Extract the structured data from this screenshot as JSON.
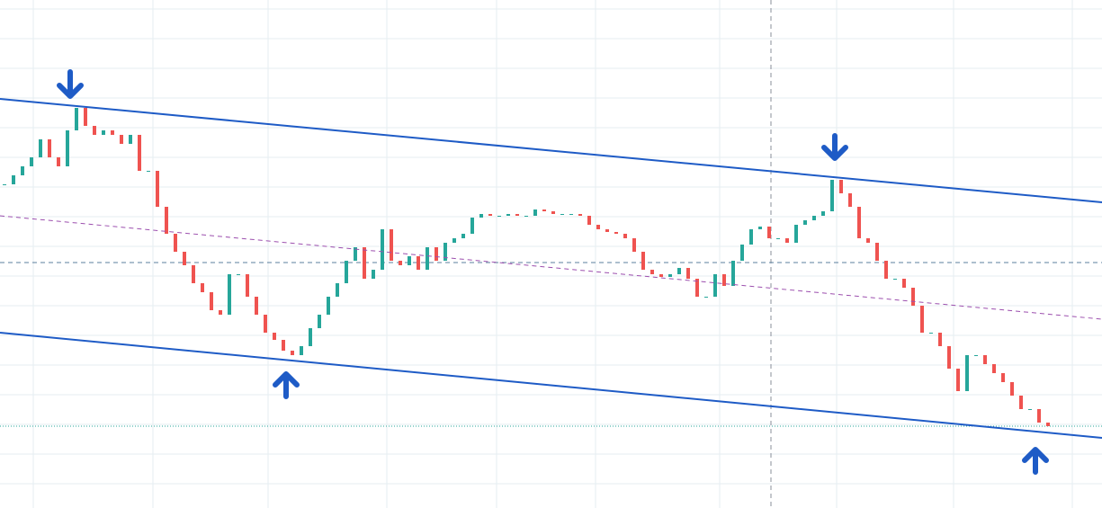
{
  "chart_data": {
    "type": "candlestick",
    "up_color": "#26a69a",
    "down_color": "#ef5350",
    "ylim": [
      0,
      565
    ],
    "values": [
      360,
      370,
      380,
      390,
      410,
      390,
      380,
      420,
      445,
      425,
      415,
      420,
      415,
      405,
      415,
      375,
      375,
      335,
      305,
      285,
      270,
      250,
      240,
      220,
      215,
      260,
      260,
      235,
      215,
      195,
      187,
      175,
      170,
      180,
      200,
      215,
      235,
      250,
      275,
      290,
      255,
      265,
      310,
      275,
      270,
      280,
      265,
      290,
      275,
      295,
      300,
      305,
      323,
      327,
      325,
      325,
      327,
      325,
      325,
      332,
      330,
      327,
      327,
      327,
      325,
      315,
      310,
      307,
      305,
      300,
      285,
      265,
      260,
      257,
      260,
      267,
      255,
      235,
      235,
      260,
      247,
      275,
      293,
      310,
      313,
      300,
      300,
      295,
      315,
      320,
      325,
      330,
      365,
      350,
      335,
      300,
      295,
      275,
      255,
      255,
      245,
      225,
      195,
      195,
      180,
      155,
      130,
      170,
      170,
      160,
      150,
      140,
      125,
      110,
      110,
      95,
      91
    ]
  }
}
